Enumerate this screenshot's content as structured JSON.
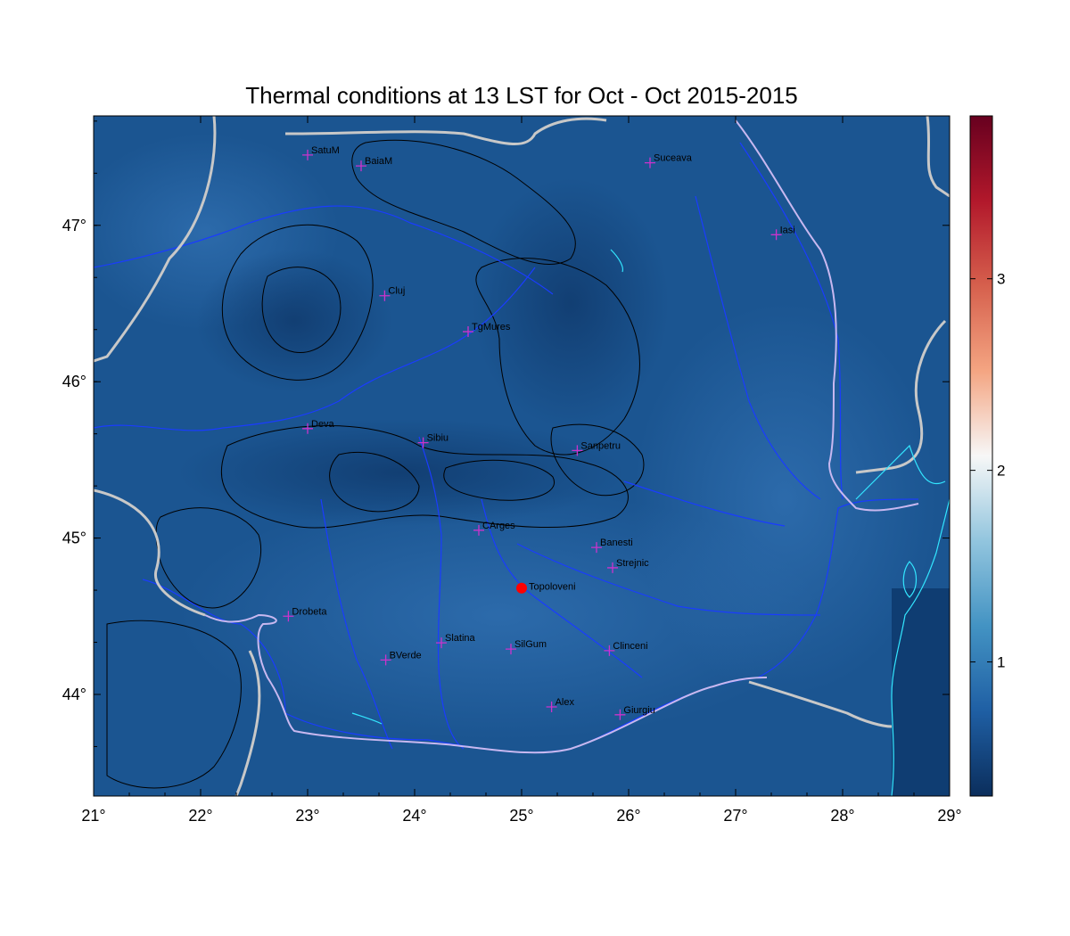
{
  "map": {
    "title": "Thermal conditions at 13 LST for Oct - Oct  2015-2015",
    "lon_range": [
      21,
      29
    ],
    "lat_range": [
      43.35,
      47.7
    ],
    "x_ticks": [
      "21°",
      "22°",
      "23°",
      "24°",
      "25°",
      "26°",
      "27°",
      "28°",
      "29°"
    ],
    "y_ticks": [
      "44°",
      "45°",
      "46°",
      "47°"
    ],
    "stations": [
      {
        "name": "SatuM",
        "lon": 23.0,
        "lat": 47.45
      },
      {
        "name": "BaiaM",
        "lon": 23.5,
        "lat": 47.38
      },
      {
        "name": "Suceava",
        "lon": 26.2,
        "lat": 47.4
      },
      {
        "name": "Iasi",
        "lon": 27.38,
        "lat": 46.94
      },
      {
        "name": "Cluj",
        "lon": 23.72,
        "lat": 46.55
      },
      {
        "name": "TgMures",
        "lon": 24.5,
        "lat": 46.32
      },
      {
        "name": "Deva",
        "lon": 23.0,
        "lat": 45.7
      },
      {
        "name": "Sibiu",
        "lon": 24.08,
        "lat": 45.61
      },
      {
        "name": "Sanpetru",
        "lon": 25.52,
        "lat": 45.56
      },
      {
        "name": "CArges",
        "lon": 24.6,
        "lat": 45.05
      },
      {
        "name": "Banesti",
        "lon": 25.7,
        "lat": 44.94
      },
      {
        "name": "Strejnic",
        "lon": 25.85,
        "lat": 44.81
      },
      {
        "name": "Drobeta",
        "lon": 22.82,
        "lat": 44.5
      },
      {
        "name": "Slatina",
        "lon": 24.25,
        "lat": 44.33
      },
      {
        "name": "SilGum",
        "lon": 24.9,
        "lat": 44.29
      },
      {
        "name": "Clinceni",
        "lon": 25.82,
        "lat": 44.28
      },
      {
        "name": "BVerde",
        "lon": 23.73,
        "lat": 44.22
      },
      {
        "name": "Alex",
        "lon": 25.28,
        "lat": 43.92
      },
      {
        "name": "Giurgiu",
        "lon": 25.92,
        "lat": 43.87
      }
    ],
    "highlight": {
      "name": "Topoloveni",
      "lon": 25.0,
      "lat": 44.68,
      "color": "#ff0000"
    },
    "colors": {
      "station_marker": "#cc33cc",
      "rivers": "#1a3cff",
      "borders": "#c8c8c8",
      "romania_border": "#c8b8f0",
      "coast": "#33e6ff"
    }
  },
  "colorbar": {
    "range": [
      0.3,
      3.85
    ],
    "ticks": [
      1,
      2,
      3
    ],
    "tick_labels": [
      "1",
      "2",
      "3"
    ],
    "stops": [
      "#0b2e5c",
      "#1f5fa4",
      "#4393c3",
      "#92c5de",
      "#f7f7f7",
      "#f4a582",
      "#d6604d",
      "#b2182b",
      "#67001f"
    ]
  }
}
